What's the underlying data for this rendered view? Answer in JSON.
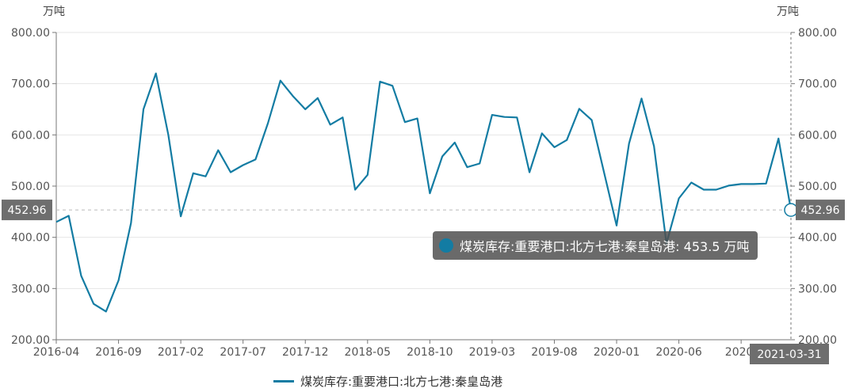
{
  "chart_data": {
    "type": "line",
    "unit_left": "万吨",
    "unit_right": "万吨",
    "ylim": [
      200,
      800
    ],
    "yticks": [
      "200.00",
      "300.00",
      "400.00",
      "500.00",
      "600.00",
      "700.00",
      "800.00"
    ],
    "x_tick_labels": [
      "2016-04",
      "2016-09",
      "2017-02",
      "2017-07",
      "2017-12",
      "2018-05",
      "2018-10",
      "2019-03",
      "2019-08",
      "2020-01",
      "2020-06",
      "2020-"
    ],
    "x_tick_start_index": 0,
    "x_tick_step": 5,
    "grid": true,
    "series": [
      {
        "name": "煤炭库存:重要港口:北方七港:秦皇岛港",
        "color": "#137ca3",
        "x": [
          "2016-04",
          "2016-05",
          "2016-06",
          "2016-07",
          "2016-08",
          "2016-09",
          "2016-10",
          "2016-11",
          "2016-12",
          "2017-01",
          "2017-02",
          "2017-03",
          "2017-04",
          "2017-05",
          "2017-06",
          "2017-07",
          "2017-08",
          "2017-09",
          "2017-10",
          "2017-11",
          "2017-12",
          "2018-01",
          "2018-02",
          "2018-03",
          "2018-04",
          "2018-05",
          "2018-06",
          "2018-07",
          "2018-08",
          "2018-09",
          "2018-10",
          "2018-11",
          "2018-12",
          "2019-01",
          "2019-02",
          "2019-03",
          "2019-04",
          "2019-05",
          "2019-06",
          "2019-07",
          "2019-08",
          "2019-09",
          "2019-10",
          "2019-11",
          "2019-12",
          "2020-01",
          "2020-02",
          "2020-03",
          "2020-04",
          "2020-05",
          "2020-06",
          "2020-07",
          "2020-08",
          "2020-09",
          "2020-10",
          "2020-11",
          "2020-12",
          "2021-01",
          "2021-02",
          "2021-03"
        ],
        "values": [
          430,
          442,
          325,
          270,
          255,
          316,
          428,
          650,
          720,
          600,
          441,
          525,
          519,
          570,
          527,
          541,
          552,
          623,
          706,
          676,
          650,
          672,
          620,
          634,
          493,
          522,
          704,
          696,
          625,
          632,
          486,
          558,
          585,
          537,
          544,
          639,
          635,
          634,
          527,
          603,
          576,
          590,
          651,
          629,
          526,
          423,
          583,
          671,
          578,
          388,
          476,
          507,
          493,
          493,
          501,
          504,
          504,
          505,
          593,
          453.5
        ]
      }
    ],
    "crosshair": {
      "left_label": "452.96",
      "right_label": "452.96",
      "x_label": "2021-03-31"
    },
    "tooltip": "煤炭库存:重要港口:北方七港:秦皇岛港: 453.5 万吨",
    "legend": {
      "label": "煤炭库存:重要港口:北方七港:秦皇岛港",
      "placement": "bottom-center"
    }
  }
}
